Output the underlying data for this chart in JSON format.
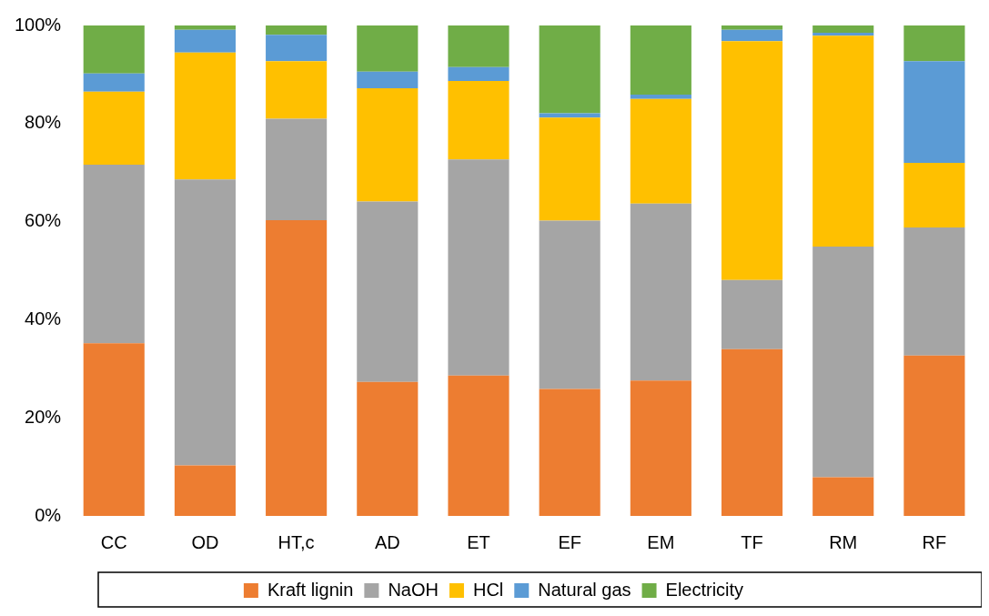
{
  "chart_data": {
    "type": "bar",
    "stacked": true,
    "categories": [
      "CC",
      "OD",
      "HT,c",
      "AD",
      "ET",
      "EF",
      "EM",
      "TF",
      "RM",
      "RF"
    ],
    "series": [
      {
        "name": "Kraft lignin",
        "color": "#ed7d31",
        "values": [
          35.2,
          10.3,
          60.3,
          27.3,
          28.6,
          25.9,
          27.6,
          34.0,
          7.9,
          32.7
        ]
      },
      {
        "name": "NaOH",
        "color": "#a5a5a5",
        "values": [
          36.4,
          58.3,
          20.7,
          36.8,
          44.1,
          34.3,
          36.1,
          14.1,
          47.0,
          26.1
        ]
      },
      {
        "name": "HCl",
        "color": "#ffc000",
        "values": [
          14.9,
          25.9,
          11.7,
          23.1,
          16.0,
          21.0,
          21.3,
          48.7,
          43.0,
          13.2
        ]
      },
      {
        "name": "Natural gas",
        "color": "#5b9bd5",
        "values": [
          3.7,
          4.6,
          5.4,
          3.4,
          2.8,
          0.9,
          0.9,
          2.3,
          0.6,
          20.7
        ]
      },
      {
        "name": "Electricity",
        "color": "#70ad47",
        "values": [
          9.8,
          0.9,
          1.9,
          9.4,
          8.5,
          17.9,
          14.1,
          0.9,
          1.5,
          7.3
        ]
      }
    ],
    "ylim": [
      0,
      100
    ],
    "yticks": [
      {
        "value": 0,
        "label": "0%"
      },
      {
        "value": 20,
        "label": "20%"
      },
      {
        "value": 40,
        "label": "40%"
      },
      {
        "value": 60,
        "label": "60%"
      },
      {
        "value": 80,
        "label": "80%"
      },
      {
        "value": 100,
        "label": "100%"
      }
    ],
    "grid": false,
    "legend": "bottom"
  }
}
